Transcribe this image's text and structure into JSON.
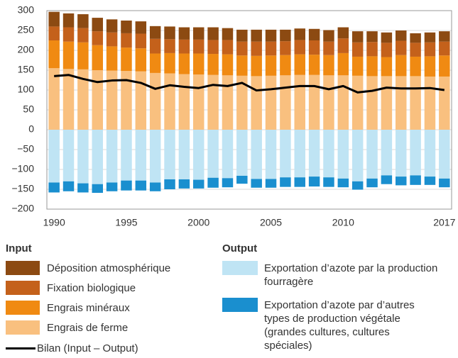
{
  "chart_data": {
    "type": "bar",
    "categories": [
      1990,
      null,
      null,
      null,
      null,
      1995,
      null,
      null,
      null,
      null,
      2000,
      null,
      null,
      null,
      null,
      2005,
      null,
      null,
      null,
      null,
      2010,
      null,
      null,
      null,
      null,
      null,
      null,
      2017
    ],
    "ylim": [
      -200,
      300
    ],
    "yticks": [
      {
        "value": -200,
        "label": "−200"
      },
      {
        "value": -150,
        "label": "−150"
      },
      {
        "value": -100,
        "label": "−100"
      },
      {
        "value": -50,
        "label": "−50"
      },
      0,
      50,
      100,
      150,
      200,
      250,
      300
    ],
    "grid": true,
    "input": {
      "title": "Input",
      "series": [
        {
          "name": "Engrais de ferme",
          "color": "#f9c07f",
          "values": [
            155,
            153,
            152,
            150,
            149,
            148,
            147,
            143,
            142,
            140,
            139,
            138,
            137,
            136,
            135,
            136,
            137,
            138,
            138,
            137,
            137,
            136,
            135,
            135,
            135,
            135,
            134,
            134
          ]
        },
        {
          "name": "Engrais minéraux",
          "color": "#f08a12",
          "values": [
            70,
            69,
            68,
            63,
            61,
            59,
            58,
            49,
            51,
            52,
            53,
            53,
            53,
            51,
            51,
            51,
            51,
            52,
            51,
            51,
            56,
            48,
            50,
            48,
            53,
            49,
            51,
            53
          ]
        },
        {
          "name": "Fixation biologique",
          "color": "#c4611b",
          "values": [
            35,
            36,
            36,
            35,
            35,
            36,
            37,
            37,
            35,
            35,
            35,
            35,
            36,
            35,
            36,
            35,
            35,
            36,
            36,
            34,
            37,
            36,
            36,
            36,
            36,
            35,
            35,
            35
          ]
        },
        {
          "name": "Déposition atmosphérique",
          "color": "#8c4a12",
          "values": [
            37,
            35,
            35,
            34,
            33,
            32,
            31,
            32,
            32,
            31,
            31,
            32,
            30,
            30,
            30,
            30,
            29,
            29,
            29,
            29,
            28,
            28,
            27,
            26,
            26,
            24,
            25,
            26
          ]
        }
      ]
    },
    "output": {
      "title": "Output",
      "series": [
        {
          "name": "Exportation d’azote par la production fourragère",
          "color": "#bfe4f4",
          "values": [
            -133,
            -130,
            -135,
            -137,
            -133,
            -128,
            -128,
            -133,
            -125,
            -125,
            -126,
            -121,
            -122,
            -116,
            -124,
            -124,
            -120,
            -120,
            -118,
            -120,
            -123,
            -130,
            -123,
            -115,
            -118,
            -115,
            -118,
            -123
          ]
        },
        {
          "name": "Exportation d’azote par d’autres types de production végétale (grandes cultures, cultures spéciales)",
          "color": "#1a8fcf",
          "values": [
            -25,
            -25,
            -23,
            -22,
            -22,
            -25,
            -25,
            -22,
            -25,
            -23,
            -22,
            -25,
            -23,
            -20,
            -22,
            -22,
            -24,
            -24,
            -25,
            -24,
            -22,
            -21,
            -22,
            -22,
            -22,
            -24,
            -21,
            -22
          ]
        }
      ]
    },
    "line": {
      "name": "Bilan (Input – Output)",
      "color": "#000000",
      "values": [
        135,
        138,
        128,
        120,
        124,
        125,
        118,
        103,
        112,
        108,
        105,
        113,
        110,
        118,
        99,
        102,
        106,
        110,
        110,
        102,
        110,
        94,
        98,
        106,
        104,
        104,
        105,
        100
      ]
    }
  }
}
